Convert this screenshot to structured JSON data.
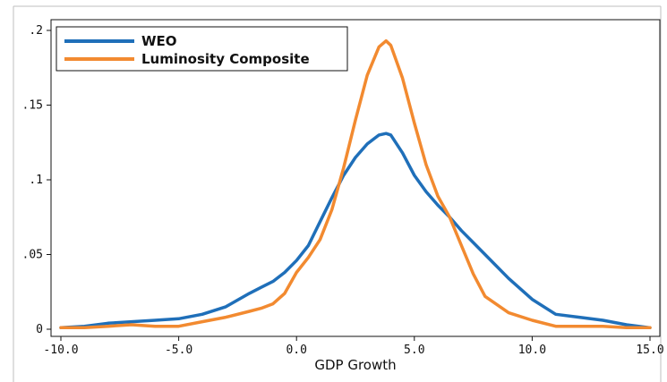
{
  "chart_data": {
    "type": "line",
    "title": "",
    "xlabel": "GDP Growth",
    "ylabel": "",
    "xlim": [
      -10,
      15
    ],
    "ylim": [
      0,
      0.2
    ],
    "xticks": [
      -10,
      -5,
      0,
      5,
      10,
      15
    ],
    "xtick_labels": [
      "-10.0",
      "-5.0",
      "0.0",
      "5.0",
      "10.0",
      "15.0"
    ],
    "yticks": [
      0,
      0.05,
      0.1,
      0.15,
      0.2
    ],
    "ytick_labels": [
      "0",
      ".05",
      ".1",
      ".15",
      ".2"
    ],
    "grid": false,
    "legend_position": "top-left",
    "series": [
      {
        "name": "WEO",
        "color": "#1f6fb9",
        "x": [
          -10,
          -9,
          -8,
          -7,
          -6,
          -5,
          -4,
          -3,
          -2,
          -1.5,
          -1,
          -0.5,
          0,
          0.5,
          1,
          1.5,
          2,
          2.5,
          3,
          3.5,
          3.8,
          4,
          4.5,
          5,
          5.5,
          6,
          6.5,
          7,
          7.5,
          8,
          9,
          10,
          11,
          12,
          13,
          14,
          15
        ],
        "y": [
          0.001,
          0.002,
          0.004,
          0.005,
          0.006,
          0.007,
          0.01,
          0.015,
          0.024,
          0.028,
          0.032,
          0.038,
          0.046,
          0.056,
          0.072,
          0.088,
          0.103,
          0.115,
          0.124,
          0.13,
          0.131,
          0.13,
          0.118,
          0.103,
          0.092,
          0.083,
          0.075,
          0.066,
          0.058,
          0.05,
          0.034,
          0.02,
          0.01,
          0.008,
          0.006,
          0.003,
          0.001
        ]
      },
      {
        "name": "Luminosity Composite",
        "color": "#f28a30",
        "x": [
          -10,
          -9,
          -8,
          -7,
          -6,
          -5,
          -4,
          -3,
          -2,
          -1.5,
          -1,
          -0.5,
          0,
          0.5,
          1,
          1.5,
          2,
          2.5,
          3,
          3.5,
          3.8,
          4,
          4.5,
          5,
          5.5,
          6,
          6.5,
          7,
          7.5,
          8,
          9,
          10,
          11,
          12,
          13,
          14,
          15
        ],
        "y": [
          0.001,
          0.001,
          0.002,
          0.003,
          0.002,
          0.002,
          0.005,
          0.008,
          0.012,
          0.014,
          0.017,
          0.024,
          0.038,
          0.048,
          0.06,
          0.08,
          0.108,
          0.14,
          0.17,
          0.189,
          0.193,
          0.19,
          0.168,
          0.138,
          0.11,
          0.089,
          0.075,
          0.056,
          0.037,
          0.022,
          0.011,
          0.006,
          0.002,
          0.002,
          0.002,
          0.001,
          0.001
        ]
      }
    ]
  }
}
